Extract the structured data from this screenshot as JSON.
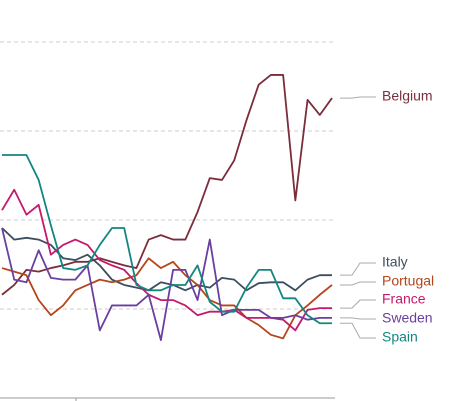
{
  "chart_data": {
    "type": "line",
    "x": [
      0,
      1,
      2,
      3,
      4,
      5,
      6,
      7,
      8,
      9,
      10,
      11,
      12,
      13,
      14,
      15,
      16,
      17,
      18,
      19,
      20,
      21,
      22,
      23,
      24,
      25,
      26,
      27
    ],
    "xlim": [
      0,
      27
    ],
    "ylim": [
      0,
      4
    ],
    "yticks": [
      1,
      2,
      3,
      4
    ],
    "grid": true,
    "series": [
      {
        "name": "Belgium",
        "color": "#7b2d3b",
        "values": [
          1.16,
          1.27,
          1.44,
          1.42,
          1.46,
          1.49,
          1.53,
          1.53,
          1.57,
          1.53,
          1.49,
          1.46,
          1.78,
          1.83,
          1.78,
          1.78,
          2.09,
          2.47,
          2.45,
          2.67,
          3.12,
          3.52,
          3.63,
          3.63,
          2.22,
          3.35,
          3.18,
          3.37
        ]
      },
      {
        "name": "Italy",
        "color": "#3d4f5e",
        "values": [
          1.91,
          1.78,
          1.8,
          1.78,
          1.72,
          1.57,
          1.55,
          1.61,
          1.49,
          1.33,
          1.27,
          1.24,
          1.21,
          1.3,
          1.27,
          1.21,
          1.27,
          1.24,
          1.35,
          1.33,
          1.21,
          1.29,
          1.3,
          1.3,
          1.21,
          1.33,
          1.38,
          1.38
        ]
      },
      {
        "name": "Portugal",
        "color": "#b5451b",
        "values": [
          1.46,
          1.42,
          1.38,
          1.1,
          0.93,
          1.04,
          1.21,
          1.27,
          1.33,
          1.3,
          1.33,
          1.38,
          1.57,
          1.46,
          1.53,
          1.38,
          1.27,
          1.1,
          1.04,
          1.04,
          0.9,
          0.82,
          0.71,
          0.67,
          0.93,
          1.04,
          1.16,
          1.27
        ]
      },
      {
        "name": "France",
        "color": "#c4196e",
        "values": [
          2.11,
          2.34,
          2.06,
          2.17,
          1.61,
          1.72,
          1.78,
          1.72,
          1.55,
          1.49,
          1.44,
          1.29,
          1.16,
          1.1,
          1.1,
          1.04,
          0.93,
          0.97,
          0.97,
          0.99,
          0.9,
          0.9,
          0.9,
          0.88,
          0.76,
          0.99,
          1.01,
          1.01
        ]
      },
      {
        "name": "Sweden",
        "color": "#6b3fa0",
        "values": [
          1.91,
          1.33,
          1.3,
          1.66,
          1.35,
          1.33,
          1.33,
          1.49,
          0.76,
          1.04,
          1.04,
          1.04,
          1.16,
          0.65,
          1.44,
          1.44,
          1.1,
          1.78,
          0.93,
          0.99,
          0.99,
          0.99,
          0.9,
          0.9,
          0.93,
          0.88,
          0.9,
          0.9
        ]
      },
      {
        "name": "Spain",
        "color": "#12877f",
        "values": [
          2.73,
          2.73,
          2.73,
          2.45,
          1.94,
          1.46,
          1.44,
          1.49,
          1.72,
          1.91,
          1.91,
          1.27,
          1.21,
          1.21,
          1.27,
          1.27,
          1.49,
          1.08,
          0.97,
          0.97,
          1.24,
          1.44,
          1.44,
          1.12,
          1.12,
          0.93,
          0.84,
          0.84
        ]
      }
    ]
  }
}
